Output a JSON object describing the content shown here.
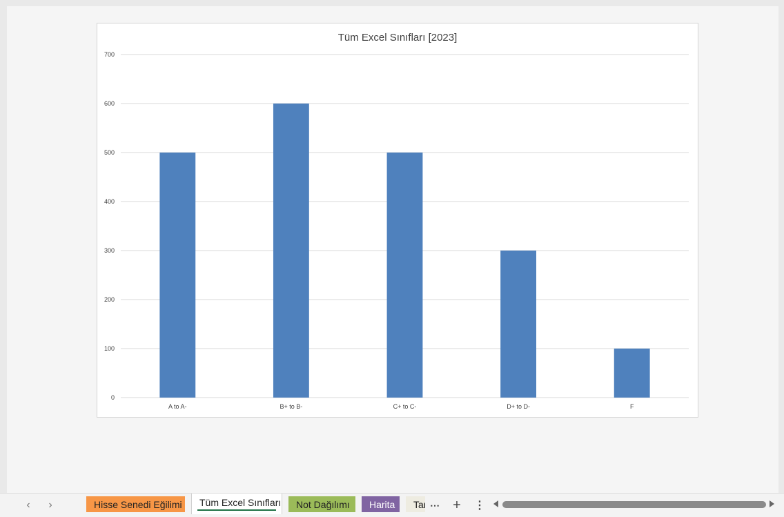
{
  "chart_data": {
    "type": "bar",
    "title": "Tüm Excel Sınıfları [2023]",
    "categories": [
      "A to A-",
      "B+ to B-",
      "C+ to C-",
      "D+ to D-",
      "F"
    ],
    "values": [
      500,
      600,
      500,
      300,
      100
    ],
    "ylim": [
      0,
      700
    ],
    "yticks": [
      "0",
      "100",
      "200",
      "300",
      "400",
      "500",
      "600",
      "700"
    ],
    "grid": true,
    "legend": "none",
    "bar_color": "#4f81bd",
    "grid_color": "#d9d9d9"
  },
  "sheet_tabs": [
    {
      "label": "Hisse Senedi Eğilimi",
      "color": "#f79646",
      "active": false
    },
    {
      "label": "Tüm Excel Sınıfları",
      "color": "#ffffff",
      "active": true
    },
    {
      "label": "Not Dağılımı",
      "color": "#9bbb59",
      "active": false
    },
    {
      "label": "Harita",
      "color": "#8064a2",
      "active": false
    },
    {
      "label": "Tarih",
      "color": "#eeece1",
      "active": false
    }
  ],
  "icons": {
    "prev": "chevron-left-icon",
    "next": "chevron-right-icon",
    "more_tabs": "ellipsis-icon",
    "add_sheet": "plus-icon",
    "options": "vertical-dots-icon"
  }
}
